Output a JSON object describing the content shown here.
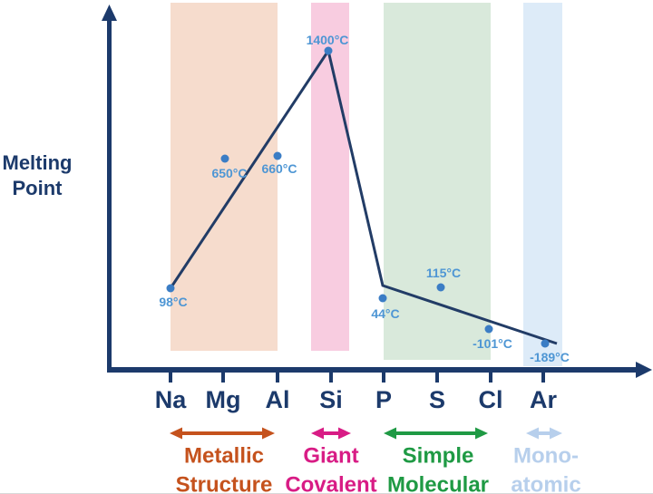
{
  "chart_data": {
    "type": "line",
    "ylabel": "Melting Point",
    "ylabel_lines": [
      "Melting",
      "Point"
    ],
    "categories": [
      "Na",
      "Mg",
      "Al",
      "Si",
      "P",
      "S",
      "Cl",
      "Ar"
    ],
    "series": [
      {
        "name": "Melting point (°C)",
        "values": [
          98,
          650,
          660,
          1400,
          44,
          115,
          -101,
          -189
        ]
      }
    ],
    "point_labels": [
      "98°C",
      "650°C",
      "660°C",
      "1400°C",
      "44°C",
      "115°C",
      "-101°C",
      "-189°C"
    ],
    "axes": {
      "x_tick_labels": [
        "Na",
        "Mg",
        "Al",
        "Si",
        "P",
        "S",
        "Cl",
        "Ar"
      ],
      "y_numeric_ticks_shown": false,
      "grid": false
    },
    "structure_groups": [
      {
        "label_lines": [
          "Metallic",
          "Structure"
        ],
        "elements": [
          "Na",
          "Mg",
          "Al"
        ],
        "band_color": "#f6dccd",
        "accent_color": "#c5521d"
      },
      {
        "label_lines": [
          "Giant",
          "Covalent"
        ],
        "elements": [
          "Si"
        ],
        "band_color": "#f8cce0",
        "accent_color": "#d81c85"
      },
      {
        "label_lines": [
          "Simple",
          "Molecular"
        ],
        "elements": [
          "P",
          "S",
          "Cl"
        ],
        "band_color": "#d9e9db",
        "accent_color": "#1f9a44"
      },
      {
        "label_lines": [
          "Mono-",
          "atomic"
        ],
        "elements": [
          "Ar"
        ],
        "band_color": "#ddebf8",
        "accent_color": "#b7cfec"
      }
    ],
    "colors": {
      "axis": "#1c3a6b",
      "line": "#223c66",
      "point": "#3b7dc5",
      "point_label": "#4e96d4",
      "element_label": "#1c3a6b"
    }
  }
}
